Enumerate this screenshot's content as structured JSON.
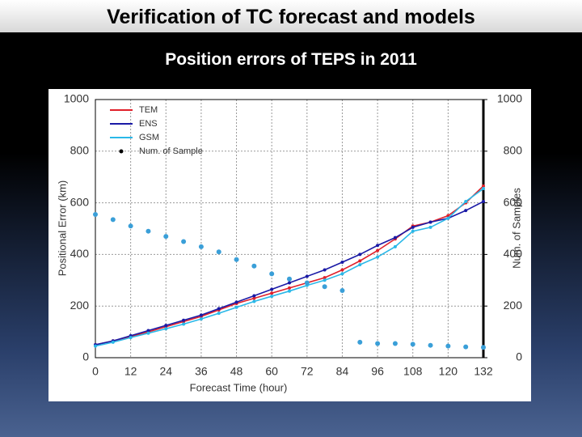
{
  "slide": {
    "title": "Verification of TC forecast and models",
    "subtitle": "Position errors of TEPS in 2011"
  },
  "chart_data": {
    "type": "line",
    "xlabel": "Forecast Time (hour)",
    "ylabel": "Positional Error (km)",
    "y2label": "Num. of Samples",
    "x": [
      0,
      6,
      12,
      18,
      24,
      30,
      36,
      42,
      48,
      54,
      60,
      66,
      72,
      78,
      84,
      90,
      96,
      102,
      108,
      114,
      120,
      126,
      132
    ],
    "xlim": [
      0,
      132
    ],
    "xticks": [
      0,
      12,
      24,
      36,
      48,
      60,
      72,
      84,
      96,
      108,
      120,
      132
    ],
    "ylim": [
      0,
      1000
    ],
    "yticks": [
      0,
      200,
      400,
      600,
      800,
      1000
    ],
    "y2lim": [
      0,
      1000
    ],
    "y2ticks": [
      0,
      200,
      400,
      600,
      800,
      1000
    ],
    "grid": true,
    "legend": "upper left",
    "series": [
      {
        "name": "TEM",
        "color": "#e0202a",
        "values": [
          50,
          65,
          82,
          100,
          120,
          140,
          160,
          185,
          210,
          230,
          250,
          270,
          290,
          310,
          340,
          375,
          415,
          460,
          510,
          525,
          550,
          600,
          665
        ]
      },
      {
        "name": "ENS",
        "color": "#1a1aa6",
        "values": [
          50,
          65,
          85,
          105,
          125,
          145,
          165,
          190,
          215,
          240,
          265,
          290,
          315,
          340,
          370,
          400,
          435,
          465,
          505,
          525,
          540,
          570,
          605
        ]
      },
      {
        "name": "GSM",
        "color": "#2ab8e8",
        "values": [
          45,
          60,
          78,
          95,
          112,
          130,
          150,
          172,
          195,
          218,
          238,
          258,
          280,
          300,
          325,
          360,
          390,
          430,
          490,
          505,
          540,
          605,
          655
        ]
      },
      {
        "name": "Num. of Sample",
        "color": "#3a9fd8",
        "axis": "y2",
        "markers_only": true,
        "values": [
          555,
          535,
          510,
          490,
          470,
          450,
          430,
          410,
          380,
          355,
          325,
          305,
          290,
          275,
          260,
          60,
          55,
          55,
          52,
          48,
          45,
          42,
          40
        ]
      }
    ]
  }
}
